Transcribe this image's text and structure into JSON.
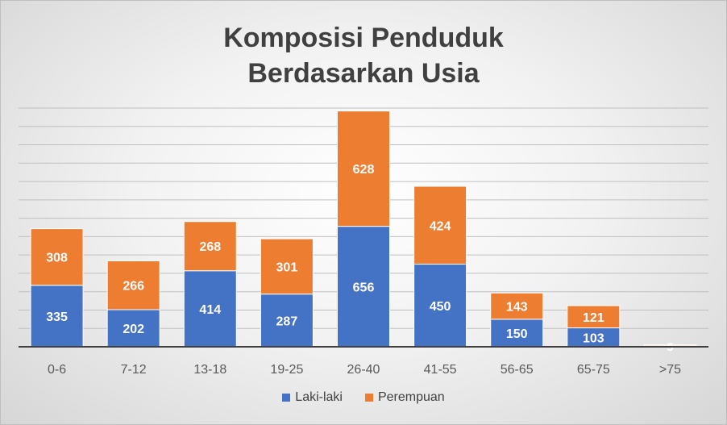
{
  "chart_data": {
    "type": "bar",
    "stacked": true,
    "title_lines": [
      "Komposisi Penduduk",
      "Berdasarkan Usia"
    ],
    "categories": [
      "0-6",
      "7-12",
      "13-18",
      "19-25",
      "26-40",
      "41-55",
      "56-65",
      "65-75",
      ">75"
    ],
    "series": [
      {
        "name": "Laki-laki",
        "color": "#4472c4",
        "values": [
          335,
          202,
          414,
          287,
          656,
          450,
          150,
          103,
          5
        ]
      },
      {
        "name": "Perempuan",
        "color": "#ed7d31",
        "values": [
          308,
          266,
          268,
          301,
          628,
          424,
          143,
          121,
          5
        ]
      }
    ],
    "data_labels": [
      [
        "335",
        "202",
        "414",
        "287",
        "656",
        "450",
        "150",
        "103",
        "5"
      ],
      [
        "308",
        "266",
        "268",
        "301",
        "628",
        "424",
        "143",
        "121",
        "5"
      ]
    ],
    "ylim": [
      0,
      1300
    ],
    "gridline_step": 100,
    "grid": true,
    "legend_position": "bottom"
  }
}
